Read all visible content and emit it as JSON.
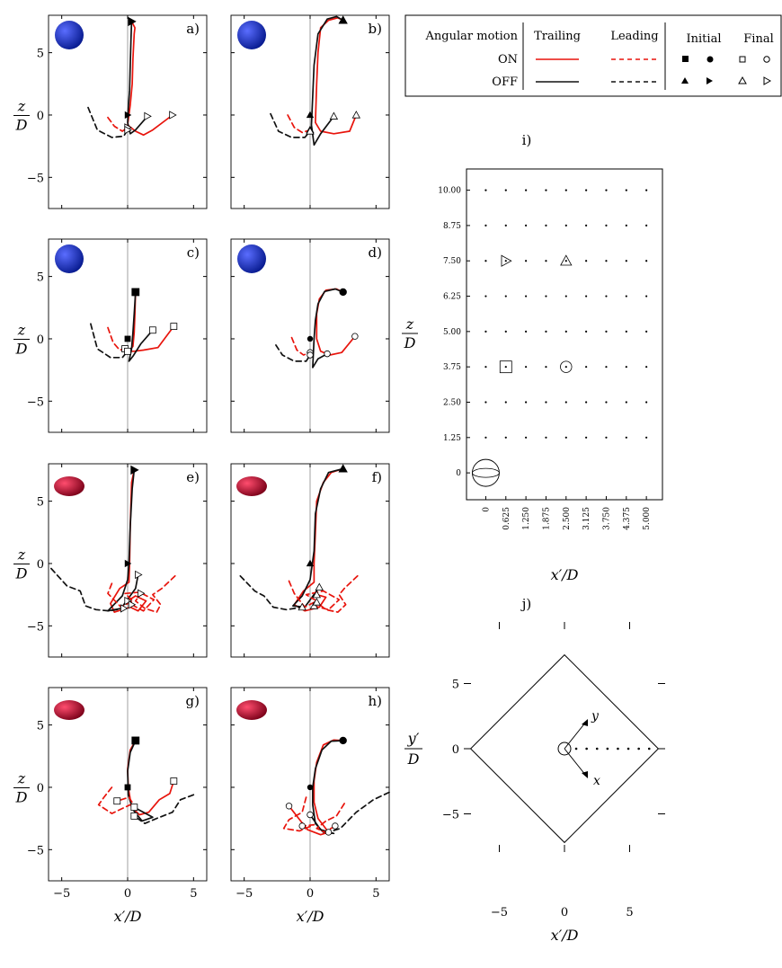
{
  "figure": {
    "colors": {
      "on": "#e8140c",
      "off": "#111111",
      "axis": "#000000",
      "centerline": "#888888",
      "sphere_light": "#5a6dff",
      "sphere_dark": "#071a8e",
      "spheroid_light": "#ff4d6e",
      "spheroid_dark": "#7a0018"
    }
  },
  "legend": {
    "header": {
      "angular": "Angular motion",
      "trailing": "Trailing",
      "leading": "Leading",
      "initial": "Initial",
      "final": "Final"
    },
    "rows": [
      "ON",
      "OFF"
    ]
  },
  "panel_labels": [
    "a)",
    "b)",
    "c)",
    "d)",
    "e)",
    "f)",
    "g)",
    "h)"
  ],
  "panel_axes": {
    "xlabel": "x′/D",
    "ylabel_num": "z",
    "ylabel_den": "D",
    "xticks": [
      "−5",
      "0",
      "5"
    ],
    "yticks": [
      "5",
      "0",
      "−5"
    ]
  },
  "chart_data": [
    {
      "type": "line",
      "panel": "a)",
      "particle": "sphere",
      "start": "z=7.5",
      "marker": "triangle-right",
      "xlim": [
        -6,
        6
      ],
      "ylim": [
        -7.5,
        8
      ],
      "series": [
        {
          "name": "ON Trailing",
          "x": [
            0.3,
            0.55,
            0.5,
            0.4,
            0.35,
            0.2,
            0.0,
            0.6,
            1.2,
            1.9,
            3.4
          ],
          "y": [
            7.5,
            7.0,
            6.5,
            4.5,
            2.5,
            0.8,
            -0.8,
            -1.3,
            -1.6,
            -1.2,
            0.0
          ]
        },
        {
          "name": "OFF Trailing",
          "x": [
            0.3,
            0.25,
            0.2,
            0.15,
            0.05,
            0.0,
            0.2,
            0.6,
            1.5
          ],
          "y": [
            7.5,
            6.0,
            4.0,
            2.0,
            0.5,
            -0.6,
            -1.5,
            -1.2,
            -0.1
          ]
        },
        {
          "name": "ON Leading",
          "x": [
            -1.5,
            -1.0,
            -0.4,
            0.0
          ],
          "y": [
            -0.2,
            -0.9,
            -1.3,
            -1.0
          ]
        },
        {
          "name": "OFF Leading",
          "x": [
            -3.0,
            -2.3,
            -1.2,
            -0.3,
            0.0
          ],
          "y": [
            0.6,
            -1.2,
            -1.8,
            -1.7,
            -1.2
          ]
        }
      ]
    },
    {
      "type": "line",
      "panel": "b)",
      "particle": "sphere",
      "start": "z=7.5",
      "marker": "triangle",
      "xlim": [
        -6,
        6
      ],
      "ylim": [
        -7.5,
        8
      ],
      "series": [
        {
          "name": "ON Trailing",
          "x": [
            2.5,
            2.1,
            1.4,
            0.8,
            0.6,
            0.5,
            0.4,
            0.8,
            1.8,
            3.0,
            3.5
          ],
          "y": [
            7.6,
            7.8,
            7.6,
            7.0,
            5.0,
            2.5,
            -0.6,
            -1.3,
            -1.5,
            -1.3,
            0.0
          ]
        },
        {
          "name": "OFF Trailing",
          "x": [
            2.5,
            2.0,
            1.3,
            0.6,
            0.3,
            0.2,
            0.1,
            0.3,
            0.8,
            1.8
          ],
          "y": [
            7.6,
            7.9,
            7.7,
            6.5,
            4.0,
            1.5,
            -0.8,
            -2.4,
            -1.5,
            -0.1
          ]
        },
        {
          "name": "ON Leading",
          "x": [
            -1.7,
            -1.2,
            -0.6,
            0.0
          ],
          "y": [
            0.0,
            -1.0,
            -1.4,
            -1.2
          ]
        },
        {
          "name": "OFF Leading",
          "x": [
            -3.0,
            -2.4,
            -1.4,
            -0.4,
            0.0
          ],
          "y": [
            0.1,
            -1.3,
            -1.8,
            -1.8,
            -1.3
          ]
        }
      ]
    },
    {
      "type": "line",
      "panel": "c)",
      "particle": "sphere",
      "start": "z=3.75",
      "marker": "square",
      "xlim": [
        -6,
        6
      ],
      "ylim": [
        -7.5,
        8
      ],
      "series": [
        {
          "name": "ON Trailing",
          "x": [
            0.6,
            0.55,
            0.5,
            0.4,
            0.1,
            0.5,
            1.2,
            2.3,
            3.5
          ],
          "y": [
            3.75,
            2.0,
            0.5,
            -0.6,
            -1.0,
            -1.0,
            -0.9,
            -0.7,
            1.0
          ]
        },
        {
          "name": "OFF Trailing",
          "x": [
            0.6,
            0.5,
            0.4,
            0.3,
            0.1,
            0.4,
            1.0,
            1.9
          ],
          "y": [
            3.75,
            2.0,
            0.5,
            -0.8,
            -1.8,
            -1.4,
            -0.4,
            0.7
          ]
        },
        {
          "name": "ON Leading",
          "x": [
            -1.5,
            -1.1,
            -0.6,
            -0.2
          ],
          "y": [
            0.9,
            -0.3,
            -0.9,
            -0.8
          ]
        },
        {
          "name": "OFF Leading",
          "x": [
            -2.8,
            -2.3,
            -1.3,
            -0.4,
            0.0
          ],
          "y": [
            1.2,
            -0.8,
            -1.5,
            -1.5,
            -1.0
          ]
        }
      ]
    },
    {
      "type": "line",
      "panel": "d)",
      "particle": "sphere",
      "start": "z=3.75",
      "marker": "circle",
      "xlim": [
        -6,
        6
      ],
      "ylim": [
        -7.5,
        8
      ],
      "series": [
        {
          "name": "ON Trailing",
          "x": [
            2.5,
            2.0,
            1.2,
            0.7,
            0.5,
            0.5,
            0.8,
            1.5,
            2.4,
            3.4
          ],
          "y": [
            3.75,
            4.0,
            3.9,
            3.2,
            2.0,
            0.0,
            -1.0,
            -1.3,
            -1.1,
            0.2
          ]
        },
        {
          "name": "OFF Trailing",
          "x": [
            2.5,
            1.9,
            1.1,
            0.6,
            0.4,
            0.3,
            0.2,
            0.6,
            1.3
          ],
          "y": [
            3.75,
            4.0,
            3.8,
            2.8,
            1.5,
            0.0,
            -2.3,
            -1.6,
            -1.2
          ]
        },
        {
          "name": "ON Leading",
          "x": [
            -1.4,
            -1.0,
            -0.5,
            0.0
          ],
          "y": [
            0.1,
            -0.9,
            -1.3,
            -1.1
          ]
        },
        {
          "name": "OFF Leading",
          "x": [
            -2.6,
            -2.1,
            -1.2,
            -0.3,
            0.0
          ],
          "y": [
            -0.5,
            -1.3,
            -1.8,
            -1.8,
            -1.3
          ]
        }
      ]
    },
    {
      "type": "line",
      "panel": "e)",
      "particle": "spheroid",
      "start": "z=7.5",
      "marker": "triangle-right",
      "xlim": [
        -6,
        6
      ],
      "ylim": [
        -7.5,
        8
      ],
      "series": [
        {
          "name": "ON Trailing",
          "x": [
            0.5,
            0.3,
            0.2,
            0.15,
            0.1,
            -0.6,
            -1.3,
            -1.0,
            0.2,
            0.8,
            1.4,
            0.6,
            0.0
          ],
          "y": [
            7.5,
            6.5,
            3.0,
            0.0,
            -1.5,
            -2.0,
            -3.2,
            -3.9,
            -3.5,
            -3.8,
            -3.0,
            -2.6,
            -3.0
          ]
        },
        {
          "name": "OFF Trailing",
          "x": [
            0.5,
            0.35,
            0.2,
            0.1,
            0.0,
            -0.4,
            -1.5,
            -0.5,
            0.6,
            0.8
          ],
          "y": [
            7.5,
            6.0,
            3.0,
            0.0,
            -1.3,
            -2.6,
            -3.8,
            -3.6,
            -2.0,
            -0.9
          ]
        },
        {
          "name": "ON Leading",
          "x": [
            -1.2,
            -1.5,
            -0.5,
            0.4,
            -0.2,
            0.9,
            2.0,
            1.2,
            0.3
          ],
          "y": [
            -1.6,
            -2.4,
            -3.5,
            -3.0,
            -2.4,
            -2.3,
            -2.9,
            -3.8,
            -3.3
          ]
        },
        {
          "name": "ON Leading 2",
          "x": [
            3.6,
            2.6,
            1.9,
            2.5,
            2.2,
            1.3,
            0.6,
            1.0
          ],
          "y": [
            -1.0,
            -2.0,
            -2.5,
            -3.3,
            -3.9,
            -3.6,
            -3.0,
            -2.4
          ]
        },
        {
          "name": "OFF Leading",
          "x": [
            -5.8,
            -4.6,
            -3.6,
            -3.2,
            -2.4,
            -1.4,
            -0.3
          ],
          "y": [
            -0.4,
            -1.8,
            -2.2,
            -3.4,
            -3.7,
            -3.8,
            -3.6
          ]
        }
      ]
    },
    {
      "type": "line",
      "panel": "f)",
      "particle": "spheroid",
      "start": "z=7.5",
      "marker": "triangle",
      "xlim": [
        -6,
        6
      ],
      "ylim": [
        -7.5,
        8
      ],
      "series": [
        {
          "name": "ON Trailing",
          "x": [
            2.5,
            1.6,
            1.0,
            0.5,
            0.4,
            0.3,
            0.3,
            -0.5,
            -1.2,
            -0.4,
            0.7,
            1.2,
            0.5
          ],
          "y": [
            7.6,
            7.3,
            6.5,
            5.0,
            2.5,
            0.0,
            -1.5,
            -2.2,
            -3.3,
            -3.8,
            -3.5,
            -2.7,
            -2.5
          ]
        },
        {
          "name": "OFF Trailing",
          "x": [
            2.5,
            1.4,
            0.8,
            0.4,
            0.3,
            0.0,
            -0.6,
            -1.3,
            -0.4,
            0.7
          ],
          "y": [
            7.6,
            7.3,
            6.0,
            4.0,
            1.0,
            -1.3,
            -2.6,
            -3.4,
            -3.5,
            -1.9
          ]
        },
        {
          "name": "ON Leading",
          "x": [
            -1.6,
            -1.2,
            -0.4,
            0.5,
            -0.3,
            1.0,
            2.2,
            1.4,
            0.3
          ],
          "y": [
            -1.4,
            -2.4,
            -3.5,
            -3.0,
            -2.5,
            -2.2,
            -2.9,
            -3.7,
            -3.4
          ]
        },
        {
          "name": "ON Leading 2",
          "x": [
            3.6,
            2.6,
            2.2,
            2.7,
            2.1,
            1.2,
            0.5
          ],
          "y": [
            -1.0,
            -2.0,
            -2.5,
            -3.3,
            -3.9,
            -3.7,
            -3.1
          ]
        },
        {
          "name": "OFF Leading",
          "x": [
            -5.3,
            -4.2,
            -3.5,
            -2.8,
            -1.8,
            -0.6
          ],
          "y": [
            -1.0,
            -2.2,
            -2.6,
            -3.5,
            -3.7,
            -3.5
          ]
        }
      ]
    },
    {
      "type": "line",
      "panel": "g)",
      "particle": "spheroid",
      "start": "z=3.75",
      "marker": "square",
      "xlim": [
        -6,
        6
      ],
      "ylim": [
        -7.5,
        8
      ],
      "series": [
        {
          "name": "ON Trailing",
          "x": [
            0.6,
            0.2,
            0.0,
            0.05,
            0.3,
            0.9,
            1.6,
            2.4,
            3.2,
            3.5
          ],
          "y": [
            3.75,
            3.0,
            1.5,
            0.0,
            -1.6,
            -2.2,
            -2.0,
            -1.0,
            -0.5,
            0.5
          ]
        },
        {
          "name": "OFF Trailing",
          "x": [
            0.6,
            0.2,
            0.0,
            0.05,
            0.4,
            1.1,
            1.9,
            1.2,
            0.5
          ],
          "y": [
            3.75,
            2.8,
            1.3,
            -0.6,
            -1.8,
            -2.7,
            -2.4,
            -2.0,
            -1.6
          ]
        },
        {
          "name": "ON Leading",
          "x": [
            -1.2,
            -1.8,
            -2.2,
            -1.2,
            -0.4,
            0.4,
            0.1,
            -0.8
          ],
          "y": [
            0.0,
            -0.8,
            -1.4,
            -2.1,
            -1.7,
            -1.3,
            -0.8,
            -1.1
          ]
        },
        {
          "name": "OFF Leading",
          "x": [
            5.0,
            4.0,
            3.4,
            2.2,
            1.3,
            0.5
          ],
          "y": [
            -0.6,
            -1.0,
            -2.0,
            -2.5,
            -2.9,
            -2.3
          ]
        }
      ]
    },
    {
      "type": "line",
      "panel": "h)",
      "particle": "spheroid",
      "start": "z=3.75",
      "marker": "circle",
      "xlim": [
        -6,
        6
      ],
      "ylim": [
        -7.5,
        8
      ],
      "series": [
        {
          "name": "ON Trailing",
          "x": [
            2.5,
            1.8,
            1.0,
            0.5,
            0.3,
            0.3,
            0.6,
            1.4,
            0.8,
            -0.2,
            -1.6
          ],
          "y": [
            3.75,
            3.8,
            3.4,
            2.0,
            0.5,
            -1.2,
            -2.5,
            -3.6,
            -3.8,
            -3.4,
            -1.5
          ]
        },
        {
          "name": "OFF Trailing",
          "x": [
            2.5,
            1.6,
            0.9,
            0.4,
            0.2,
            0.2,
            0.4,
            1.0,
            1.8,
            0.8,
            0.0
          ],
          "y": [
            3.75,
            3.7,
            3.0,
            1.5,
            0.0,
            -1.4,
            -2.9,
            -3.6,
            -3.7,
            -3.4,
            -2.2
          ]
        },
        {
          "name": "ON Leading",
          "x": [
            -0.3,
            -0.6,
            -1.6,
            -2.0,
            -0.8,
            0.3,
            -0.6
          ],
          "y": [
            -0.8,
            -2.0,
            -2.6,
            -3.3,
            -3.5,
            -3.0,
            -3.1
          ]
        },
        {
          "name": "ON Leading 2",
          "x": [
            2.6,
            2.0,
            1.2,
            0.5,
            1.1,
            1.9
          ],
          "y": [
            -1.3,
            -2.3,
            -2.7,
            -3.3,
            -3.6,
            -3.1
          ]
        },
        {
          "name": "OFF Leading",
          "x": [
            6.0,
            4.8,
            3.5,
            2.3,
            1.4
          ],
          "y": [
            -0.4,
            -1.0,
            -2.0,
            -3.3,
            -3.6
          ]
        }
      ]
    },
    {
      "type": "scatter",
      "panel": "i)",
      "xlabel": "x′/D",
      "ylabel_num": "z",
      "ylabel_den": "D",
      "xticks": [
        "0",
        "0.625",
        "1.250",
        "1.875",
        "2.500",
        "3.125",
        "3.750",
        "4.375",
        "5.000"
      ],
      "yticks": [
        "0",
        "1.25",
        "2.50",
        "3.75",
        "5.00",
        "6.25",
        "7.50",
        "8.75",
        "10.00"
      ],
      "x_range": [
        -0.6,
        5.5
      ],
      "y_range": [
        -0.95,
        10.75
      ],
      "grid_x": [
        0,
        0.625,
        1.25,
        1.875,
        2.5,
        3.125,
        3.75,
        4.375,
        5.0
      ],
      "grid_z": [
        1.25,
        2.5,
        3.75,
        5.0,
        6.25,
        7.5,
        8.75,
        10.0
      ],
      "markers": [
        {
          "shape": "triangle-right",
          "x": 0.625,
          "z": 7.5
        },
        {
          "shape": "triangle",
          "x": 2.5,
          "z": 7.5
        },
        {
          "shape": "square",
          "x": 0.625,
          "z": 3.75
        },
        {
          "shape": "circle",
          "x": 2.5,
          "z": 3.75
        }
      ]
    },
    {
      "type": "scatter",
      "panel": "j)",
      "xlabel": "x′/D",
      "ylabel_num": "y′",
      "ylabel_den": "D",
      "xticks": [
        "−5",
        "0",
        "5"
      ],
      "yticks": [
        "5",
        "0",
        "−5"
      ],
      "xlim": [
        -7.5,
        7.5
      ],
      "ylim": [
        -7.5,
        7.5
      ],
      "domain_half_diagonal": 7.2,
      "body_axes": [
        "y",
        "x"
      ],
      "dots_x": [
        0.9,
        1.7,
        2.5,
        3.3,
        4.1,
        4.9,
        5.7,
        6.5
      ]
    }
  ]
}
